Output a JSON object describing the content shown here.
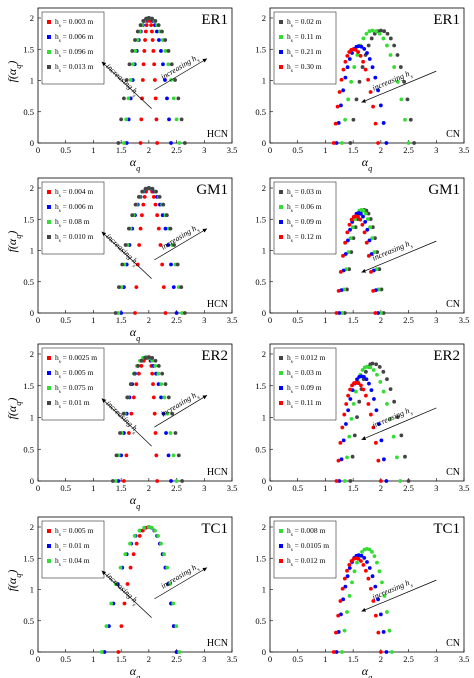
{
  "chart_data": [
    {
      "type": "scatter",
      "title": "ER1",
      "tag": "HCN",
      "xlabel": "α_q",
      "ylabel": "f(α_q)",
      "xlim": [
        0,
        3.5
      ],
      "ylim": [
        0,
        2
      ],
      "xticks": [
        "0",
        "0.5",
        "1",
        "1.5",
        "2",
        "2.5",
        "3",
        "3.5"
      ],
      "yticks": [
        "0",
        "0.5",
        "1",
        "1.5",
        "2"
      ],
      "arrow_label": "increasing h_s",
      "arrows": "both",
      "series": [
        {
          "name": "h_s = 0.003 m",
          "color": "#ff0000",
          "a_min": 1.85,
          "a_peak": 2.0,
          "a_max": 2.15,
          "f_peak": 2.0,
          "n": 22
        },
        {
          "name": "h_s = 0.006 m",
          "color": "#0000ff",
          "a_min": 1.6,
          "a_peak": 2.0,
          "a_max": 2.4,
          "f_peak": 2.0,
          "n": 22
        },
        {
          "name": "h_s = 0.096 m",
          "color": "#33dd33",
          "a_min": 1.55,
          "a_peak": 2.0,
          "a_max": 2.55,
          "f_peak": 2.0,
          "n": 22
        },
        {
          "name": "h_s = 0.013 m",
          "color": "#444444",
          "a_min": 1.45,
          "a_peak": 2.0,
          "a_max": 2.65,
          "f_peak": 2.0,
          "n": 22
        }
      ]
    },
    {
      "type": "scatter",
      "title": "ER1",
      "tag": "CN",
      "xlabel": "α_q",
      "ylabel": "",
      "xlim": [
        0,
        3.5
      ],
      "ylim": [
        0,
        2
      ],
      "xticks": [
        "0",
        "0.5",
        "1",
        "1.5",
        "2",
        "2.5",
        "3",
        "3.5"
      ],
      "yticks": [
        "0",
        "0.5",
        "1",
        "1.5",
        "2"
      ],
      "arrow_label": "increasing h_s",
      "arrows": "left",
      "series": [
        {
          "name": "h_s = 0.02 m",
          "color": "#444444",
          "a_min": 1.45,
          "a_peak": 2.0,
          "a_max": 2.6,
          "f_peak": 1.8,
          "n": 20
        },
        {
          "name": "h_s = 0.11 m",
          "color": "#33dd33",
          "a_min": 1.3,
          "a_peak": 1.85,
          "a_max": 2.5,
          "f_peak": 1.8,
          "n": 20
        },
        {
          "name": "h_s = 0.21 m",
          "color": "#0000ff",
          "a_min": 1.2,
          "a_peak": 1.6,
          "a_max": 2.1,
          "f_peak": 1.55,
          "n": 20
        },
        {
          "name": "h_s = 0.30 m",
          "color": "#ff0000",
          "a_min": 1.15,
          "a_peak": 1.5,
          "a_max": 1.95,
          "f_peak": 1.5,
          "n": 20
        }
      ]
    },
    {
      "type": "scatter",
      "title": "GM1",
      "tag": "HCN",
      "xlabel": "α_q",
      "ylabel": "f(α_q)",
      "xlim": [
        0,
        3.5
      ],
      "ylim": [
        0,
        2
      ],
      "xticks": [
        "0",
        "0.5",
        "1",
        "1.5",
        "2",
        "2.5",
        "3",
        "3.5"
      ],
      "yticks": [
        "0",
        "0.5",
        "1",
        "1.5",
        "2"
      ],
      "arrow_label": "increasing h_s",
      "arrows": "both",
      "series": [
        {
          "name": "h_s = 0.004 m",
          "color": "#ff0000",
          "a_min": 1.75,
          "a_peak": 2.0,
          "a_max": 2.3,
          "f_peak": 2.0,
          "n": 20
        },
        {
          "name": "h_s = 0.006 m",
          "color": "#0000ff",
          "a_min": 1.5,
          "a_peak": 2.0,
          "a_max": 2.5,
          "f_peak": 2.0,
          "n": 20
        },
        {
          "name": "h_s = 0.08 m",
          "color": "#33dd33",
          "a_min": 1.45,
          "a_peak": 2.0,
          "a_max": 2.6,
          "f_peak": 2.0,
          "n": 20
        },
        {
          "name": "h_s = 0.010 m",
          "color": "#444444",
          "a_min": 1.4,
          "a_peak": 2.0,
          "a_max": 2.65,
          "f_peak": 2.0,
          "n": 20
        }
      ]
    },
    {
      "type": "scatter",
      "title": "GM1",
      "tag": "CN",
      "xlabel": "",
      "ylabel": "",
      "xlim": [
        0,
        3.5
      ],
      "ylim": [
        0,
        2
      ],
      "xticks": [
        "0",
        "0.5",
        "1",
        "1.5",
        "2",
        "2.5",
        "3",
        "3.5"
      ],
      "yticks": [
        "0",
        "0.5",
        "1",
        "1.5",
        "2"
      ],
      "arrow_label": "increasing h_s",
      "arrows": "left",
      "series": [
        {
          "name": "h_s = 0.03 m",
          "color": "#444444",
          "a_min": 1.35,
          "a_peak": 1.7,
          "a_max": 2.05,
          "f_peak": 1.65,
          "n": 18
        },
        {
          "name": "h_s = 0.06 m",
          "color": "#33dd33",
          "a_min": 1.3,
          "a_peak": 1.65,
          "a_max": 2.0,
          "f_peak": 1.65,
          "n": 18
        },
        {
          "name": "h_s = 0.09 m",
          "color": "#0000ff",
          "a_min": 1.25,
          "a_peak": 1.6,
          "a_max": 1.95,
          "f_peak": 1.6,
          "n": 18
        },
        {
          "name": "h_s = 0.12 m",
          "color": "#ff0000",
          "a_min": 1.2,
          "a_peak": 1.55,
          "a_max": 1.9,
          "f_peak": 1.55,
          "n": 18
        }
      ]
    },
    {
      "type": "scatter",
      "title": "ER2",
      "tag": "HCN",
      "xlabel": "α_q",
      "ylabel": "f(α_q)",
      "xlim": [
        0,
        3.5
      ],
      "ylim": [
        0,
        2
      ],
      "xticks": [
        "0",
        "0.5",
        "1",
        "1.5",
        "2",
        "2.5",
        "3",
        "3.5"
      ],
      "yticks": [
        "0",
        "0.5",
        "1",
        "1.5",
        "2"
      ],
      "arrow_label": "increasing h_s",
      "arrows": "both",
      "series": [
        {
          "name": "h_s = 0.0025 m",
          "color": "#ff0000",
          "a_min": 1.55,
          "a_peak": 2.0,
          "a_max": 2.15,
          "f_peak": 1.95,
          "n": 20
        },
        {
          "name": "h_s = 0.005 m",
          "color": "#0000ff",
          "a_min": 1.45,
          "a_peak": 1.95,
          "a_max": 2.4,
          "f_peak": 1.95,
          "n": 20
        },
        {
          "name": "h_s = 0.075 m",
          "color": "#33dd33",
          "a_min": 1.4,
          "a_peak": 1.95,
          "a_max": 2.5,
          "f_peak": 1.95,
          "n": 20
        },
        {
          "name": "h_s = 0.01 m",
          "color": "#444444",
          "a_min": 1.35,
          "a_peak": 2.0,
          "a_max": 2.6,
          "f_peak": 1.95,
          "n": 20
        }
      ]
    },
    {
      "type": "scatter",
      "title": "ER2",
      "tag": "CN",
      "xlabel": "",
      "ylabel": "",
      "xlim": [
        0,
        3.5
      ],
      "ylim": [
        0,
        2
      ],
      "xticks": [
        "0",
        "0.5",
        "1",
        "1.5",
        "2",
        "2.5",
        "3",
        "3.5"
      ],
      "yticks": [
        "0",
        "0.5",
        "1",
        "1.5",
        "2"
      ],
      "arrow_label": "increasing h_s",
      "arrows": "left",
      "series": [
        {
          "name": "h_s = 0.012 m",
          "color": "#444444",
          "a_min": 1.45,
          "a_peak": 1.85,
          "a_max": 2.5,
          "f_peak": 1.85,
          "n": 20
        },
        {
          "name": "h_s = 0.03 m",
          "color": "#33dd33",
          "a_min": 1.35,
          "a_peak": 1.75,
          "a_max": 2.35,
          "f_peak": 1.8,
          "n": 20
        },
        {
          "name": "h_s = 0.09 m",
          "color": "#0000ff",
          "a_min": 1.25,
          "a_peak": 1.65,
          "a_max": 2.1,
          "f_peak": 1.65,
          "n": 20
        },
        {
          "name": "h_s = 0.11 m",
          "color": "#ff0000",
          "a_min": 1.2,
          "a_peak": 1.55,
          "a_max": 2.0,
          "f_peak": 1.55,
          "n": 20
        }
      ]
    },
    {
      "type": "scatter",
      "title": "TC1",
      "tag": "HCN",
      "xlabel": "α_q",
      "ylabel": "f(α_q)",
      "xlim": [
        0,
        3.5
      ],
      "ylim": [
        0,
        2
      ],
      "xticks": [
        "0",
        "0.5",
        "1",
        "1.5",
        "2",
        "2.5",
        "3",
        "3.5"
      ],
      "yticks": [
        "0",
        "0.5",
        "1",
        "1.5",
        "2"
      ],
      "arrow_label": "increasing h_s",
      "arrows": "both",
      "series": [
        {
          "name": "h_s = 0.005 m",
          "color": "#ff0000",
          "a_min": 1.45,
          "a_peak": 2.0,
          "a_max": 2.5,
          "f_peak": 2.0,
          "n": 20
        },
        {
          "name": "h_s = 0.01 m",
          "color": "#0000ff",
          "a_min": 1.2,
          "a_peak": 2.0,
          "a_max": 2.5,
          "f_peak": 2.0,
          "n": 20
        },
        {
          "name": "h_s = 0.04 m",
          "color": "#33dd33",
          "a_min": 1.15,
          "a_peak": 2.0,
          "a_max": 2.55,
          "f_peak": 2.0,
          "n": 20
        }
      ]
    },
    {
      "type": "scatter",
      "title": "TC1",
      "tag": "CN",
      "xlabel": "α_q",
      "ylabel": "",
      "xlim": [
        0,
        3.5
      ],
      "ylim": [
        0,
        2
      ],
      "xticks": [
        "0",
        "0.5",
        "1",
        "1.5",
        "2",
        "2.5",
        "3",
        "3.5"
      ],
      "yticks": [
        "0",
        "0.5",
        "1",
        "1.5",
        "2"
      ],
      "arrow_label": "increasing h_s",
      "arrows": "left",
      "series": [
        {
          "name": "h_s = 0.008 m",
          "color": "#33dd33",
          "a_min": 1.3,
          "a_peak": 1.75,
          "a_max": 2.2,
          "f_peak": 1.65,
          "n": 20
        },
        {
          "name": "h_s = 0.0105 m",
          "color": "#0000ff",
          "a_min": 1.2,
          "a_peak": 1.6,
          "a_max": 2.1,
          "f_peak": 1.55,
          "n": 20
        },
        {
          "name": "h_s = 0.012 m",
          "color": "#ff0000",
          "a_min": 1.15,
          "a_peak": 1.55,
          "a_max": 2.0,
          "f_peak": 1.5,
          "n": 20
        }
      ]
    }
  ]
}
